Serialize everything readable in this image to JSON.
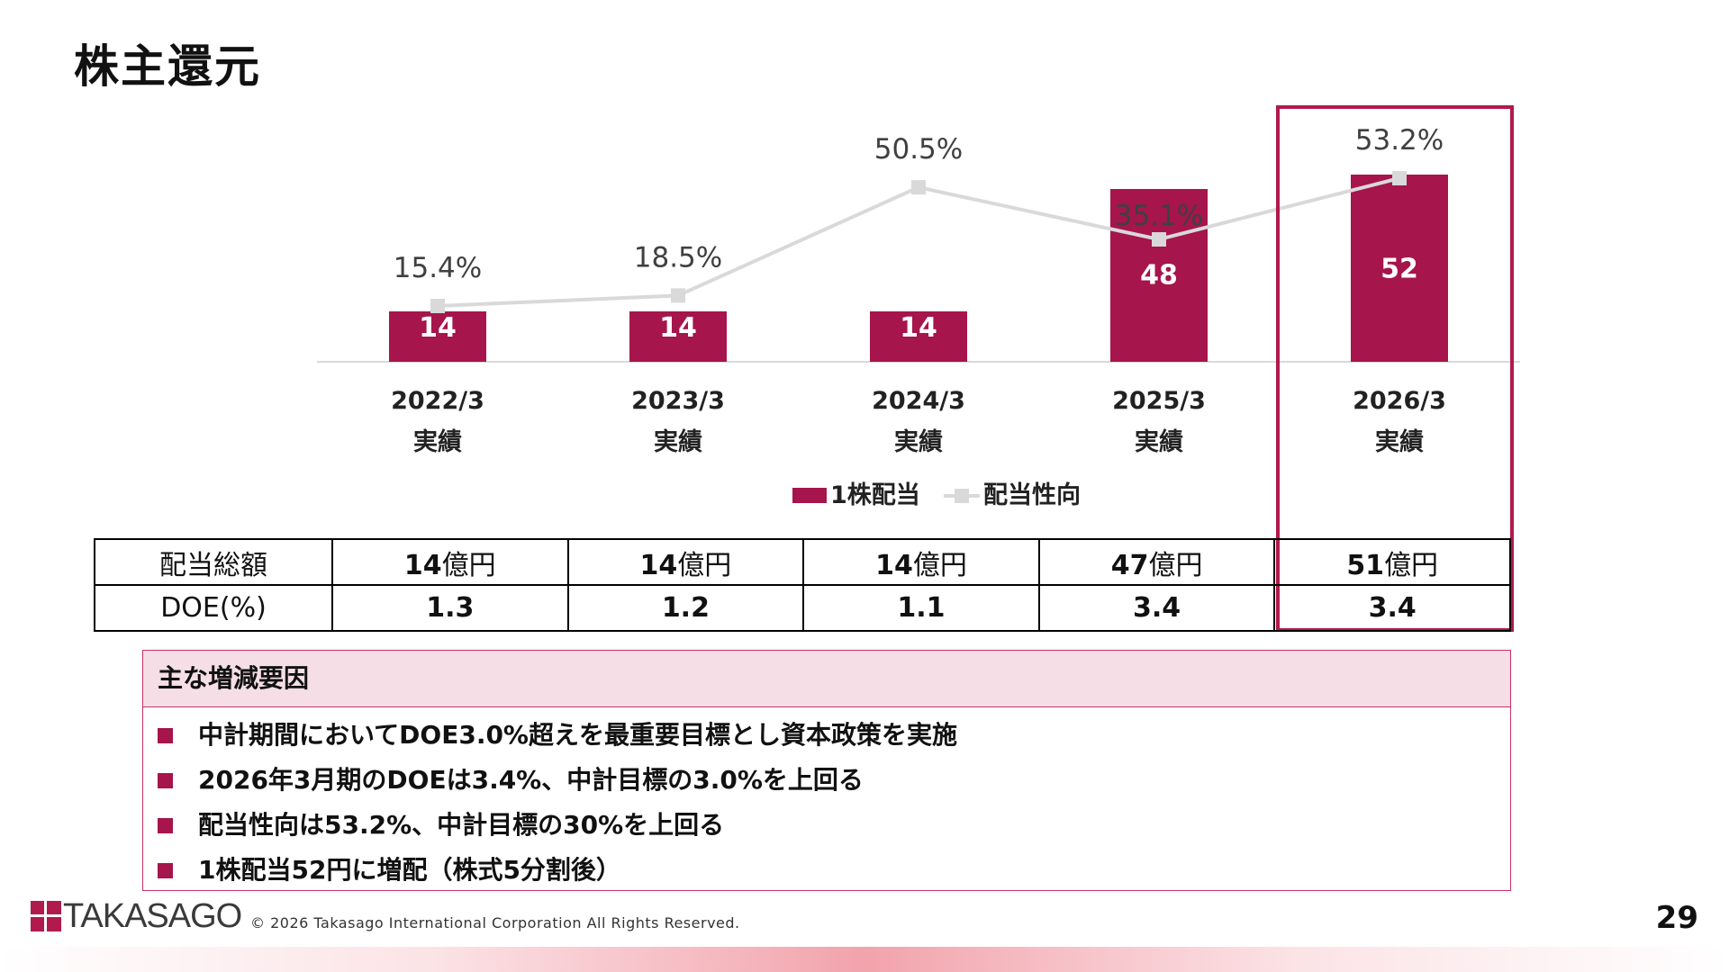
{
  "title": "株主還元",
  "chart_data": {
    "type": "bar",
    "categories": [
      "2022/3",
      "2023/3",
      "2024/3",
      "2025/3",
      "2026/3"
    ],
    "category_sublabels": [
      "実績",
      "実績",
      "実績",
      "実績",
      "実績"
    ],
    "series": [
      {
        "name": "1株配当",
        "type": "bar",
        "values": [
          14,
          14,
          14,
          48,
          52
        ],
        "labels": [
          "14",
          "14",
          "14",
          "48",
          "52"
        ]
      },
      {
        "name": "配当性向",
        "type": "line",
        "values": [
          15.4,
          18.5,
          50.5,
          35.1,
          53.2
        ],
        "labels": [
          "15.4%",
          "18.5%",
          "50.5%",
          "35.1%",
          "53.2%"
        ]
      }
    ],
    "bar_color": "#a6154b",
    "line_color": "#d9d9d9",
    "legend_position": "bottom",
    "highlighted_category": "2026/3"
  },
  "table": {
    "rows": [
      {
        "label": "配当総額",
        "cells": [
          {
            "num": "14",
            "unit": "億円"
          },
          {
            "num": "14",
            "unit": "億円"
          },
          {
            "num": "14",
            "unit": "億円"
          },
          {
            "num": "47",
            "unit": "億円"
          },
          {
            "num": "51",
            "unit": "億円"
          }
        ]
      },
      {
        "label": "DOE(%)",
        "cells": [
          {
            "num": "1.3",
            "unit": ""
          },
          {
            "num": "1.2",
            "unit": ""
          },
          {
            "num": "1.1",
            "unit": ""
          },
          {
            "num": "3.4",
            "unit": ""
          },
          {
            "num": "3.4",
            "unit": ""
          }
        ]
      }
    ]
  },
  "factors": {
    "heading": "主な増減要因",
    "items": [
      "中計期間においてDOE3.0%超えを最重要目標とし資本政策を実施",
      "2026年3月期のDOEは3.4%、中計目標の3.0%を上回る",
      "配当性向は53.2%、中計目標の30%を上回る",
      "1株配当52円に増配（株式5分割後）"
    ]
  },
  "footer": {
    "logo_text": "TAKASAGO",
    "copyright": "© 2026 Takasago International Corporation All Rights Reserved.",
    "page_number": "29"
  },
  "accent_color": "#b01a4d"
}
